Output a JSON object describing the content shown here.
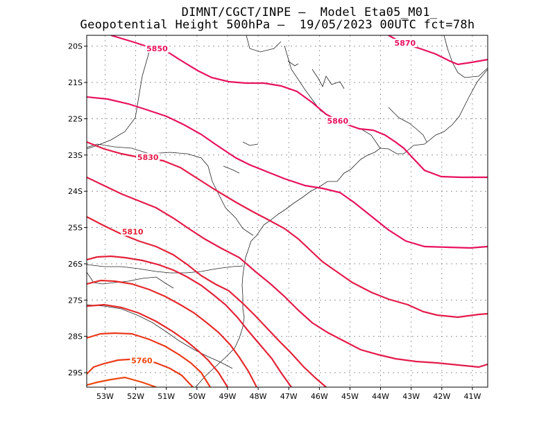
{
  "header": {
    "line1": "DIMNT/CGCT/INPE –  Model Eta05_M01_",
    "line2": "Geopotential Height 500hPa –  19/05/2023 00UTC fct=78h"
  },
  "map": {
    "lat_labels": [
      "20S",
      "21S",
      "22S",
      "23S",
      "24S",
      "25S",
      "26S",
      "27S",
      "28S",
      "29S"
    ],
    "lon_labels": [
      "53W",
      "52W",
      "51W",
      "50W",
      "49W",
      "48W",
      "47W",
      "46W",
      "45W",
      "44W",
      "43W",
      "42W",
      "41W"
    ],
    "lon_range": [
      -53.6,
      -40.5
    ],
    "lat_range": [
      -29.4,
      -19.7
    ],
    "contour_colors": {
      "5870": "#e8105e",
      "5860": "#e8105e",
      "5850": "#e8105e",
      "5840": "#e41a4a",
      "5830": "#e41a4a",
      "5820": "#e3213a",
      "5810": "#e3213a",
      "5800": "#e52a2a",
      "5790": "#e52a2a",
      "5780": "#ea3a1a",
      "5770": "#ea3a1a",
      "5760": "#ee4810"
    },
    "contour_labels": [
      {
        "text": "5870",
        "level": "5870",
        "lon": -43.2,
        "lat": -19.95
      },
      {
        "text": "5850",
        "level": "5850",
        "lon": -51.3,
        "lat": -20.1
      },
      {
        "text": "5860",
        "level": "5860",
        "lon": -45.4,
        "lat": -22.1
      },
      {
        "text": "5830",
        "level": "5830",
        "lon": -51.6,
        "lat": -23.1
      },
      {
        "text": "5810",
        "level": "5810",
        "lon": -52.1,
        "lat": -25.15
      },
      {
        "text": "5760",
        "level": "5760",
        "lon": -51.8,
        "lat": -28.7
      }
    ]
  }
}
